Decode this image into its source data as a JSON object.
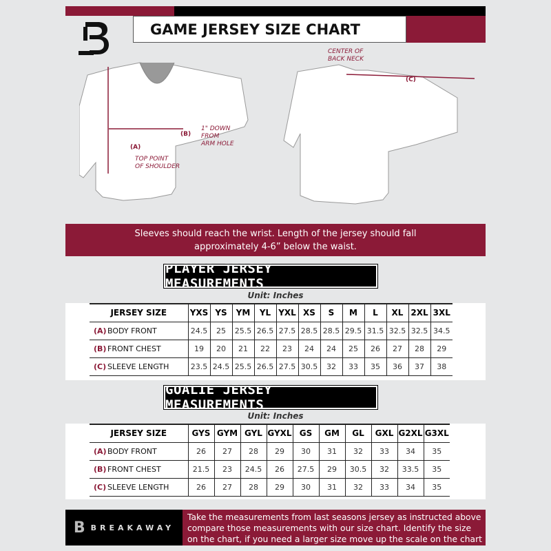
{
  "header": {
    "title": "GAME JERSEY SIZE CHART",
    "logo": "B"
  },
  "diagram": {
    "front_labels": {
      "a": "(A)",
      "b": "(B)",
      "a_note": [
        "TOP POINT",
        "OF SHOULDER"
      ],
      "b_note": [
        "1\" DOWN",
        "FROM",
        "ARM HOLE"
      ]
    },
    "back_labels": {
      "c": "(C)",
      "c_note": [
        "CENTER OF",
        "BACK NECK"
      ]
    }
  },
  "advice": [
    "Sleeves should reach the wrist. Length of the jersey should fall",
    "approximately 4-6” below the waist."
  ],
  "player": {
    "title": "PLAYER JERSEY MEASUREMENTS",
    "unit": "Unit: Inches",
    "size_label": "JERSEY SIZE",
    "sizes": [
      "YXS",
      "YS",
      "YM",
      "YL",
      "YXL",
      "XS",
      "S",
      "M",
      "L",
      "XL",
      "2XL",
      "3XL"
    ],
    "rows": [
      {
        "code": "(A)",
        "name": "BODY FRONT",
        "values": [
          "24.5",
          "25",
          "25.5",
          "26.5",
          "27.5",
          "28.5",
          "28.5",
          "29.5",
          "31.5",
          "32.5",
          "32.5",
          "34.5"
        ]
      },
      {
        "code": "(B)",
        "name": "FRONT CHEST",
        "values": [
          "19",
          "20",
          "21",
          "22",
          "23",
          "24",
          "24",
          "25",
          "26",
          "27",
          "28",
          "29"
        ]
      },
      {
        "code": "(C)",
        "name": "SLEEVE LENGTH",
        "values": [
          "23.5",
          "24.5",
          "25.5",
          "26.5",
          "27.5",
          "30.5",
          "32",
          "33",
          "35",
          "36",
          "37",
          "38"
        ]
      }
    ]
  },
  "goalie": {
    "title": "GOALIE JERSEY MEASUREMENTS",
    "unit": "Unit: Inches",
    "size_label": "JERSEY SIZE",
    "sizes": [
      "GYS",
      "GYM",
      "GYL",
      "GYXL",
      "GS",
      "GM",
      "GL",
      "GXL",
      "G2XL",
      "G3XL"
    ],
    "rows": [
      {
        "code": "(A)",
        "name": "BODY FRONT",
        "values": [
          "26",
          "27",
          "28",
          "29",
          "30",
          "31",
          "32",
          "33",
          "34",
          "35"
        ]
      },
      {
        "code": "(B)",
        "name": "FRONT CHEST",
        "values": [
          "21.5",
          "23",
          "24.5",
          "26",
          "27.5",
          "29",
          "30.5",
          "32",
          "33.5",
          "35"
        ]
      },
      {
        "code": "(C)",
        "name": "SLEEVE LENGTH",
        "values": [
          "26",
          "27",
          "28",
          "29",
          "30",
          "31",
          "32",
          "33",
          "34",
          "35"
        ]
      }
    ]
  },
  "footer": {
    "brand": "BREAKAWAY",
    "instructions": [
      "Take the measurements from last seasons jersey as instructed above",
      "compare those measurements  with our size chart. Identify the size",
      "on the chart, if you need a larger size move up the scale on the chart"
    ]
  },
  "colors": {
    "accent": "#8b1a37",
    "dark": "#000000",
    "background": "#e6e7e8"
  }
}
